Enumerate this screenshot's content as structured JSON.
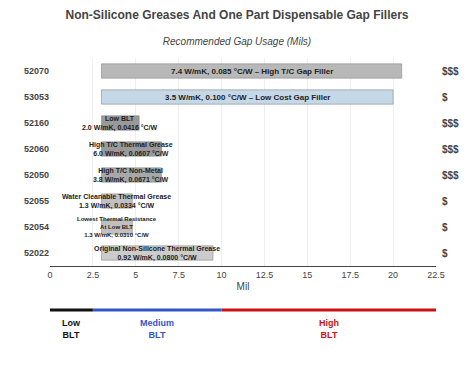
{
  "chart_data": {
    "type": "bar",
    "orientation": "horizontal",
    "title": "Non-Silicone Greases And One Part Dispensable Gap Fillers",
    "subtitle": "Recommended Gap Usage (Mils)",
    "xlabel": "Mil",
    "categories": [
      "52070",
      "53053",
      "52160",
      "52060",
      "52050",
      "52055",
      "52054",
      "52022"
    ],
    "starts": [
      3.0,
      3.0,
      3.0,
      3.0,
      3.0,
      3.0,
      3.0,
      3.0
    ],
    "values": [
      17.5,
      17.0,
      2.2,
      3.5,
      3.5,
      1.8,
      1.8,
      6.5
    ],
    "colors": [
      "#b8b8b8",
      "#c5d8e8",
      "#999999",
      "#9a9a9a",
      "#a8a8a8",
      "#c0c0c0",
      "#c0c0c0",
      "#cccccc"
    ],
    "bar_texts": [
      "7.4 W/mK, 0.085 °C/W – High T/C Gap Filler",
      "3.5 W/mK, 0.100 °C/W – Low Cost Gap Filler",
      "Low BLT\n2.0 W/mK, 0.0416 °C/W",
      "High T/C Thermal Grease\n6.0 W/mK, 0.0607 °C/W",
      "High T/C Non-Metal\n3.8 W/mK, 0.0671 °C/W",
      "Water Cleanable Thermal Grease\n1.3 W/mK, 0.0334 °C/W",
      "Lowest Thermal Resistance\nAt Low BLT\n1.3 W/mK, 0.0310 °C/W",
      "Original Non-Silicone Thermal Grease\n0.92 W/mK, 0.0800 °C/W"
    ],
    "price_labels": [
      "$$$",
      "$",
      "$$$",
      "$$$",
      "$$$",
      "$",
      "$",
      "$"
    ],
    "xlim": [
      0,
      22.5
    ],
    "xticks": [
      0,
      2.5,
      5,
      7.5,
      10,
      12.5,
      15,
      17.5,
      20,
      22.5
    ],
    "grid": true,
    "blt_bands": [
      {
        "labels": [
          "Low",
          "BLT"
        ],
        "color": "#111111",
        "x_start": 0,
        "x_end": 2.5
      },
      {
        "labels": [
          "Medium",
          "BLT"
        ],
        "color": "#3355cc",
        "x_start": 2.5,
        "x_end": 10
      },
      {
        "labels": [
          "High",
          "BLT"
        ],
        "color": "#cc1111",
        "x_start": 10,
        "x_end": 22.5
      }
    ]
  }
}
